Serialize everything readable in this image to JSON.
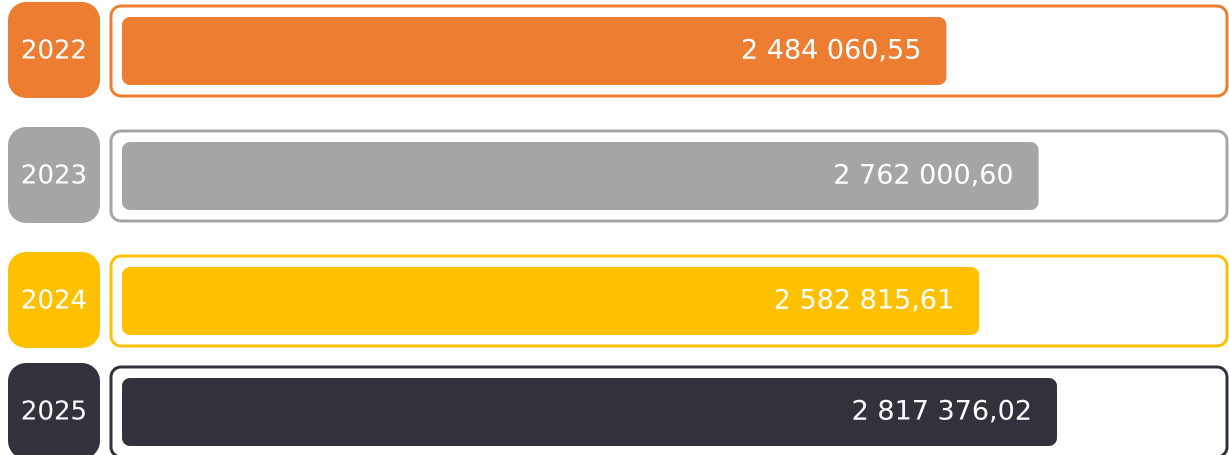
{
  "chart_data": {
    "type": "bar",
    "orientation": "horizontal",
    "categories": [
      "2022",
      "2023",
      "2024",
      "2025"
    ],
    "values": [
      2484060.55,
      2762000.6,
      2582815.61,
      2817376.02
    ],
    "value_labels": [
      "2 484 060,55",
      "2 762 000,60",
      "2 582 815,61",
      "2 817 376,02"
    ],
    "colors": [
      "#ed7d31",
      "#a5a5a5",
      "#ffc000",
      "#33313b"
    ]
  }
}
